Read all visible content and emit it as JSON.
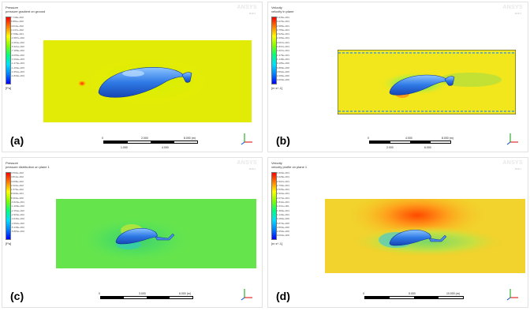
{
  "panels": [
    {
      "letter": "(a)",
      "title": "Pressure",
      "subtitle": "pressure gradient on ground",
      "brand": "ANSYS",
      "brand_sub": "R18.1",
      "legend": [
        "7.748e+002",
        "5.881e+002",
        "4.014e+002",
        "2.147e+002",
        "2.798e+001",
        "-1.587e+002",
        "-3.454e+002",
        "-5.321e+002",
        "-7.188e+002",
        "-9.055e+002",
        "-1.092e+003",
        "-1.279e+003",
        "-1.466e+003",
        "-1.652e+003",
        "-1.839e+003"
      ],
      "unit": "[Pa]",
      "scale_labels": [
        "0",
        "2.000",
        "8.000 (m)",
        "1.000",
        "4.000"
      ]
    },
    {
      "letter": "(b)",
      "title": "Velocity",
      "subtitle": "velocity in plane",
      "brand": "ANSYS",
      "brand_sub": "R18.1",
      "legend": [
        "3.445e+001",
        "3.215e+001",
        "2.985e+001",
        "2.756e+001",
        "2.526e+001",
        "2.296e+001",
        "2.067e+001",
        "1.837e+001",
        "1.607e+001",
        "1.378e+001",
        "1.148e+001",
        "9.185e+000",
        "6.889e+000",
        "4.592e+000",
        "2.296e+000",
        "0.000e+000"
      ],
      "unit": "[m s^-1]",
      "scale_labels": [
        "0",
        "4.000",
        "8.000 (m)",
        "2.000",
        "6.000"
      ]
    },
    {
      "letter": "(c)",
      "title": "Pressure",
      "subtitle": "pressure distribution on plane 1",
      "brand": "ANSYS",
      "brand_sub": "R18.1",
      "legend": [
        "4.560e+002",
        "3.814e+002",
        "3.068e+002",
        "2.322e+002",
        "1.576e+002",
        "8.300e+001",
        "8.403e+000",
        "-6.620e+001",
        "-1.408e+002",
        "-2.154e+002",
        "-2.900e+002",
        "-3.646e+002",
        "-4.392e+002",
        "-5.138e+002",
        "-5.884e+002"
      ],
      "unit": "[Pa]",
      "scale_labels": [
        "0",
        "3.000",
        "6.000 (m)"
      ]
    },
    {
      "letter": "(d)",
      "title": "Velocity",
      "subtitle": "velocity profile on plane 1",
      "brand": "ANSYS",
      "brand_sub": "R18.1",
      "legend": [
        "3.460e+001",
        "3.228e+001",
        "2.997e+001",
        "2.766e+001",
        "2.535e+001",
        "2.304e+001",
        "2.073e+001",
        "1.842e+001",
        "1.611e+001",
        "1.380e+001",
        "1.149e+001",
        "9.180e+000",
        "6.870e+000",
        "4.560e+000",
        "2.250e+000",
        "0.000e+000"
      ],
      "unit": "[m s^-1]",
      "scale_labels": [
        "0",
        "5.000",
        "10.000 (m)"
      ]
    }
  ]
}
